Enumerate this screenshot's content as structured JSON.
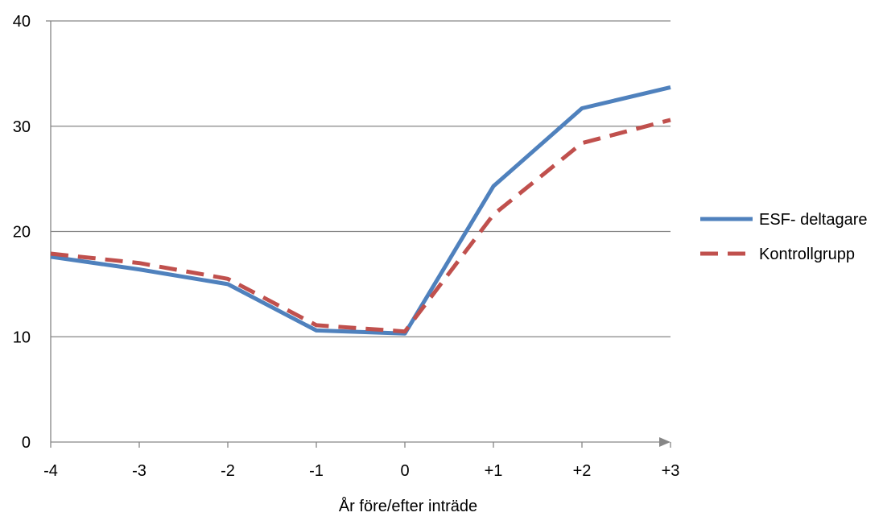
{
  "chart_data": {
    "type": "line",
    "title": "",
    "xlabel": "År före/efter inträde",
    "ylabel": "",
    "categories": [
      "-4",
      "-3",
      "-2",
      "-1",
      "0",
      "+1",
      "+2",
      "+3"
    ],
    "ylim": [
      0,
      40
    ],
    "yticks": [
      0,
      10,
      20,
      30,
      40
    ],
    "grid": "horizontal",
    "legend_position": "right",
    "series": [
      {
        "name": "ESF- deltagare",
        "color": "#4F81BD",
        "style": "solid",
        "values": [
          17.6,
          16.4,
          15.0,
          10.6,
          10.3,
          24.3,
          31.7,
          33.7
        ]
      },
      {
        "name": "Kontrollgrupp",
        "color": "#C0504D",
        "style": "dashed",
        "values": [
          17.9,
          17.0,
          15.5,
          11.1,
          10.5,
          21.6,
          28.4,
          30.6
        ]
      }
    ]
  }
}
